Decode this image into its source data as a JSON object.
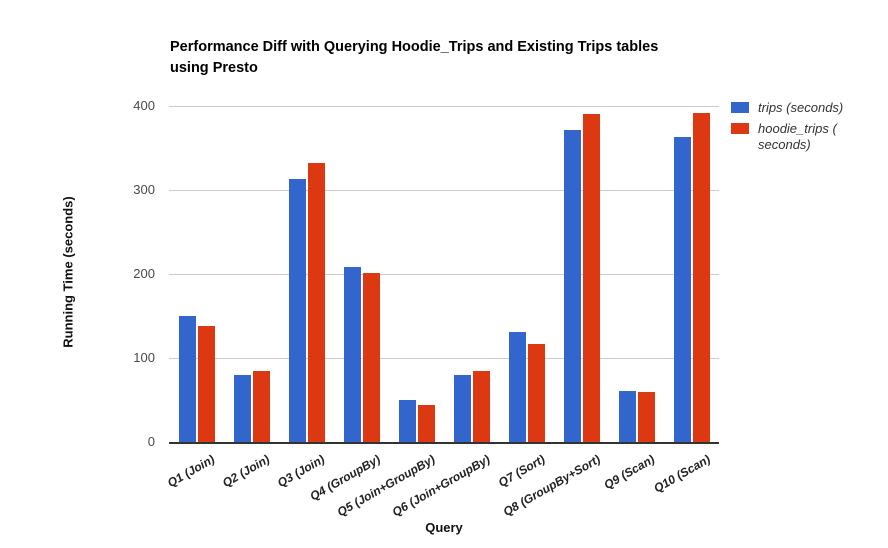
{
  "chart_data": {
    "type": "bar",
    "title": "Performance Diff with Querying Hoodie_Trips and Existing Trips tables using Presto",
    "title_lines": [
      "Performance Diff with Querying Hoodie_Trips and Existing Trips tables",
      "using Presto"
    ],
    "xlabel": "Query",
    "ylabel": "Running Time (seconds)",
    "ylim": [
      0,
      400
    ],
    "yticks": [
      0,
      100,
      200,
      300,
      400
    ],
    "grid": true,
    "legend_position": "right",
    "categories": [
      "Q1 (Join)",
      "Q2 (Join)",
      "Q3 (Join)",
      "Q4 (GroupBy)",
      "Q5 (Join+GroupBy)",
      "Q6 (Join+GroupBy)",
      "Q7 (Sort)",
      "Q8 (GroupBy+Sort)",
      "Q9 (Scan)",
      "Q10 (Scan)"
    ],
    "series": [
      {
        "name": "trips (seconds)",
        "key": "trips",
        "color": "#3366cc",
        "values": [
          150,
          80,
          313,
          208,
          50,
          80,
          131,
          371,
          61,
          363
        ]
      },
      {
        "name": "hoodie_trips ( seconds)",
        "key": "hoodie_trips",
        "color": "#dc3912",
        "values": [
          138,
          84,
          332,
          201,
          44,
          85,
          117,
          390,
          59,
          392
        ]
      }
    ],
    "colors": {
      "gridline": "#cccccc",
      "baseline": "#333333",
      "tick_text": "#4a4a4a",
      "label_text": "#222222",
      "title_text": "#000000"
    }
  }
}
